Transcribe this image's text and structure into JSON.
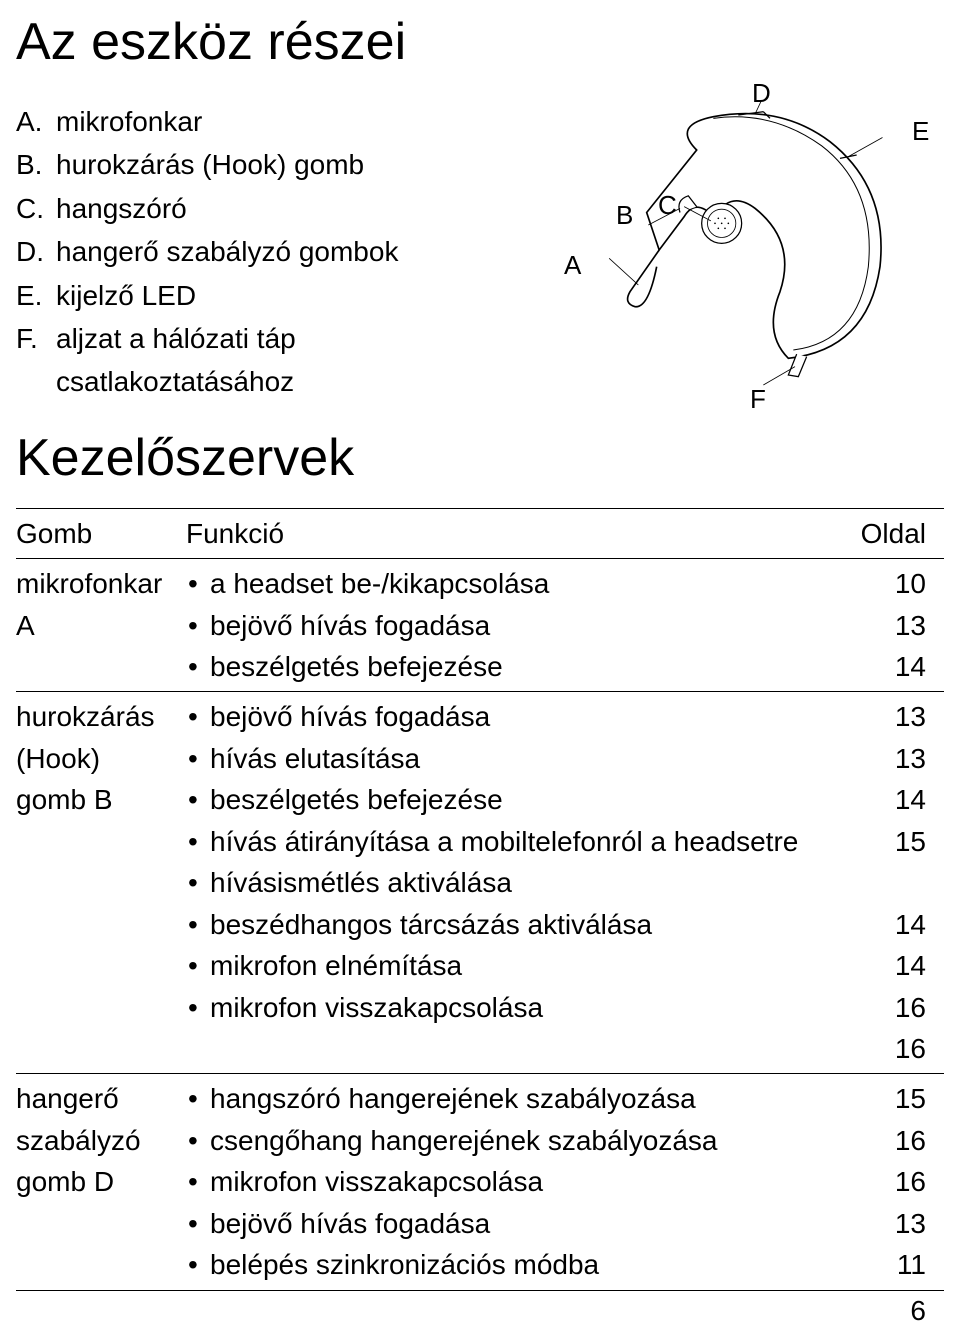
{
  "title": "Az eszköz részei",
  "parts": [
    {
      "letter": "A.",
      "text": "mikrofonkar"
    },
    {
      "letter": "B.",
      "text": "hurokzárás (Hook) gomb"
    },
    {
      "letter": "C.",
      "text": "hangszóró"
    },
    {
      "letter": "D.",
      "text": "hangerő szabályzó gombok"
    },
    {
      "letter": "E.",
      "text": "kijelző LED"
    },
    {
      "letter": "F.",
      "text": "aljzat a hálózati táp csatlakoztatásához"
    }
  ],
  "diagram_labels": {
    "A": "A",
    "B": "B",
    "C": "C",
    "D": "D",
    "E": "E",
    "F": "F"
  },
  "section_title": "Kezelőszervek",
  "table": {
    "head": {
      "col1": "Gomb",
      "col2": "Funkció",
      "col3": "Oldal"
    },
    "rows": [
      {
        "label": "mikrofonkar A",
        "funcs": [
          "a headset be-/kikapcsolása",
          "bejövő hívás fogadása",
          "beszélgetés befejezése"
        ],
        "pages": [
          "10",
          "13",
          "14"
        ]
      },
      {
        "label": "hurokzárás (Hook) gomb B",
        "funcs": [
          "bejövő hívás fogadása",
          "hívás elutasítása",
          "beszélgetés befejezése",
          "hívás átirányítása a mobiltelefonról a headsetre",
          "hívásismétlés aktiválása",
          "beszédhangos tárcsázás aktiválása",
          "mikrofon elnémítása",
          "mikrofon visszakapcsolása"
        ],
        "pages": [
          "13",
          "13",
          "14",
          "15",
          "",
          "14",
          "14",
          "16",
          "16"
        ]
      },
      {
        "label": "hangerő szabályzó gomb D",
        "funcs": [
          "hangszóró hangerejének szabályozása",
          "csengőhang hangerejének szabályozása",
          "mikrofon visszakapcsolása",
          "bejövő hívás fogadása",
          "belépés szinkronizációs módba"
        ],
        "pages": [
          "15",
          "16",
          "16",
          "13",
          "11"
        ]
      }
    ]
  },
  "footer": "6",
  "colors": {
    "text": "#000000",
    "bg": "#ffffff",
    "stroke": "#000000"
  }
}
